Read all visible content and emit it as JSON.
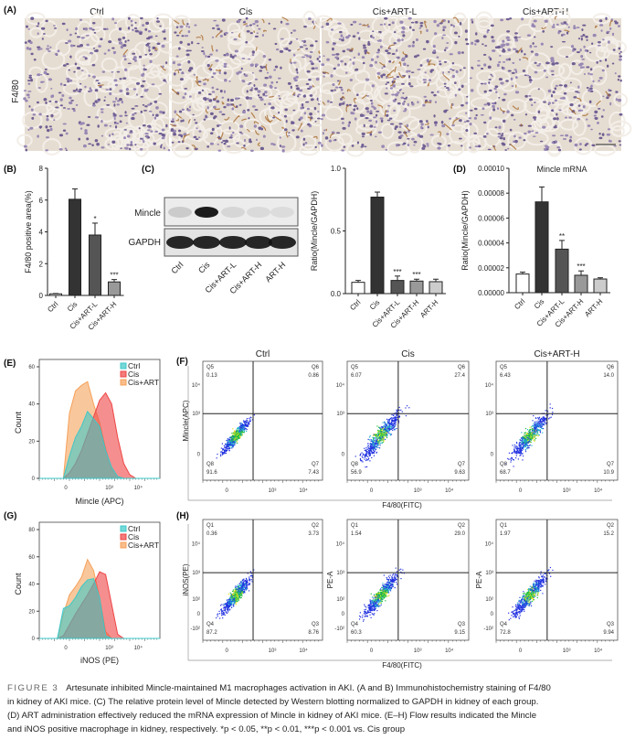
{
  "panel_labels": {
    "a": "(A)",
    "b": "(B)",
    "c": "(C)",
    "d": "(D)",
    "e": "(E)",
    "f": "(F)",
    "g": "(G)",
    "h": "(H)"
  },
  "panel_a": {
    "row_label": "F4/80",
    "columns": [
      "Ctrl",
      "Cis",
      "Cis+ART-L",
      "Cis+ART-H"
    ]
  },
  "blot": {
    "bands": [
      "Mincle",
      "GAPDH"
    ],
    "lanes": [
      "Ctrl",
      "Cis",
      "Cis+ART-L",
      "Cis+ART-H",
      "ART-H"
    ]
  },
  "chart_data": [
    {
      "id": "B",
      "type": "bar",
      "title": "",
      "ylabel": "F4/80 positive area(%)",
      "categories": [
        "Ctrl",
        "Cis",
        "Cis+ART-L",
        "Cis+ART-H"
      ],
      "values": [
        0.1,
        6.05,
        3.8,
        0.85
      ],
      "errors": [
        0.02,
        0.65,
        0.75,
        0.15
      ],
      "significance": [
        "",
        "",
        "*",
        "***"
      ],
      "ylim": [
        0,
        8
      ],
      "yticks": [
        "0",
        "2",
        "4",
        "6",
        "8"
      ],
      "colors": [
        "#ffffff",
        "#333333",
        "#555555",
        "#999999"
      ]
    },
    {
      "id": "C",
      "type": "bar",
      "title": "",
      "ylabel": "Ratio(Mincle/GAPDH)",
      "categories": [
        "Ctrl",
        "Cis",
        "Cis+ART-L",
        "Cis+ART-H",
        "ART-H"
      ],
      "values": [
        0.09,
        0.77,
        0.105,
        0.1,
        0.095
      ],
      "errors": [
        0.015,
        0.04,
        0.035,
        0.015,
        0.02
      ],
      "significance": [
        "",
        "",
        "***",
        "***",
        ""
      ],
      "ylim": [
        0,
        1.0
      ],
      "yticks": [
        "0.0",
        "0.5",
        "1.0"
      ],
      "colors": [
        "#ffffff",
        "#333333",
        "#555555",
        "#999999",
        "#cccccc"
      ]
    },
    {
      "id": "D",
      "type": "bar",
      "title": "Mincle mRNA",
      "ylabel": "Ratio(Mincle/GAPDH)",
      "categories": [
        "Ctrl",
        "Cis",
        "Cis+ART-L",
        "Cis+ART-H",
        "ART-H"
      ],
      "values": [
        1.5e-05,
        7.3e-05,
        3.5e-05,
        1.4e-05,
        1.1e-05
      ],
      "errors": [
        1.5e-06,
        1.2e-05,
        7e-06,
        3.5e-06,
        1e-06
      ],
      "significance": [
        "",
        "",
        "**",
        "***",
        ""
      ],
      "ylim": [
        0,
        0.0001
      ],
      "yticks": [
        "0.00000",
        "0.00002",
        "0.00004",
        "0.00006",
        "0.00008",
        "0.00010"
      ],
      "colors": [
        "#ffffff",
        "#333333",
        "#555555",
        "#999999",
        "#cccccc"
      ]
    },
    {
      "id": "E",
      "type": "area",
      "xlabel": "Mincle (APC)",
      "ylabel": "Count",
      "ylim": [
        0,
        60
      ],
      "yticks": [
        "0",
        "20",
        "40",
        "60"
      ],
      "xticks": [
        "0",
        "10³",
        "10⁴"
      ],
      "legend_position": "top-right",
      "series": [
        {
          "name": "Cis+ART",
          "color": "#f5a15a",
          "counts": [
            0,
            0,
            0,
            0,
            0,
            35,
            47,
            50,
            52,
            40,
            30,
            16,
            5,
            1,
            0,
            0,
            0,
            0,
            0,
            0,
            0
          ]
        },
        {
          "name": "Cis",
          "color": "#ee4444",
          "counts": [
            0,
            0,
            0,
            0,
            0,
            3,
            8,
            15,
            24,
            33,
            42,
            46,
            40,
            22,
            8,
            2,
            0,
            0,
            0,
            0,
            0
          ]
        },
        {
          "name": "Ctrl",
          "color": "#3cc8c8",
          "counts": [
            0,
            0,
            0,
            0,
            0,
            12,
            22,
            28,
            36,
            32,
            28,
            15,
            6,
            1,
            0,
            0,
            0,
            0,
            0,
            0,
            0
          ]
        }
      ]
    },
    {
      "id": "G",
      "type": "area",
      "xlabel": "iNOS (PE)",
      "ylabel": "Count",
      "ylim": [
        0,
        80
      ],
      "yticks": [
        "0",
        "20",
        "40",
        "60",
        "80"
      ],
      "xticks": [
        "0",
        "10³",
        "10⁴"
      ],
      "legend_position": "top-right",
      "series": [
        {
          "name": "Cis+ART",
          "color": "#f5a15a",
          "counts": [
            0,
            0,
            0,
            0,
            18,
            32,
            38,
            45,
            58,
            50,
            30,
            5,
            0,
            0,
            0,
            0,
            0,
            0,
            0,
            0,
            0
          ]
        },
        {
          "name": "Cis",
          "color": "#ee4444",
          "counts": [
            0,
            0,
            0,
            0,
            2,
            10,
            18,
            25,
            32,
            40,
            49,
            47,
            25,
            3,
            0,
            0,
            0,
            0,
            0,
            0,
            0
          ]
        },
        {
          "name": "Ctrl",
          "color": "#3cc8c8",
          "counts": [
            0,
            0,
            0,
            0,
            22,
            24,
            30,
            38,
            43,
            44,
            30,
            2,
            0,
            0,
            0,
            0,
            0,
            0,
            0,
            0,
            0
          ]
        }
      ]
    }
  ],
  "legend": [
    "Ctrl",
    "Cis",
    "Cis+ART"
  ],
  "flow_f": {
    "xlabel": "F4/80(FITC)",
    "ylabel": "Mincle(APC)",
    "yticks": [
      "0",
      "10³",
      "10⁴"
    ],
    "xticks": [
      "0",
      "10³",
      "10⁴"
    ],
    "plots": [
      {
        "title": "Ctrl",
        "q": [
          "Q5",
          "Q6",
          "Q7",
          "Q8"
        ],
        "v": [
          "0.13",
          "0.86",
          "7.43",
          "91.6"
        ]
      },
      {
        "title": "Cis",
        "q": [
          "Q5",
          "Q6",
          "Q7",
          "Q8"
        ],
        "v": [
          "6.07",
          "27.4",
          "9.63",
          "56.9"
        ]
      },
      {
        "title": "Cis+ART-H",
        "q": [
          "Q5",
          "Q6",
          "Q7",
          "Q8"
        ],
        "v": [
          "6.43",
          "14.0",
          "10.9",
          "68.7"
        ]
      }
    ]
  },
  "flow_h": {
    "xlabel": "F4/80(FITC)",
    "ylabels": [
      "iNOS(PE)",
      "PE-A",
      "PE-A"
    ],
    "yticks": [
      "-10²",
      "0",
      "10²",
      "10³",
      "10⁴"
    ],
    "xticks": [
      "0",
      "10³",
      "10⁴"
    ],
    "plots": [
      {
        "q": [
          "Q1",
          "Q2",
          "Q3",
          "Q4"
        ],
        "v": [
          "0.36",
          "3.73",
          "8.76",
          "87.2"
        ]
      },
      {
        "q": [
          "Q1",
          "Q2",
          "Q3",
          "Q4"
        ],
        "v": [
          "1.54",
          "29.0",
          "9.15",
          "60.3"
        ]
      },
      {
        "q": [
          "Q1",
          "Q2",
          "Q3",
          "Q4"
        ],
        "v": [
          "1.97",
          "15.2",
          "9.94",
          "72.8"
        ]
      }
    ]
  },
  "caption": {
    "label": "FIGURE 3",
    "lines": [
      "Artesunate inhibited Mincle-maintained M1 macrophages activation in AKI. (A and B) Immunohistochemistry staining of F4/80",
      "in kidney of AKI mice. (C) The relative protein level of Mincle detected by Western blotting normalized to GAPDH in kidney of each group.",
      "(D) ART administration effectively reduced the mRNA expression of Mincle in kidney of AKI mice. (E–H) Flow results indicated the Mincle",
      "and iNOS positive macrophage in kidney, respectively. *p < 0.05, **p < 0.01, ***p < 0.001 vs. Cis group"
    ]
  }
}
